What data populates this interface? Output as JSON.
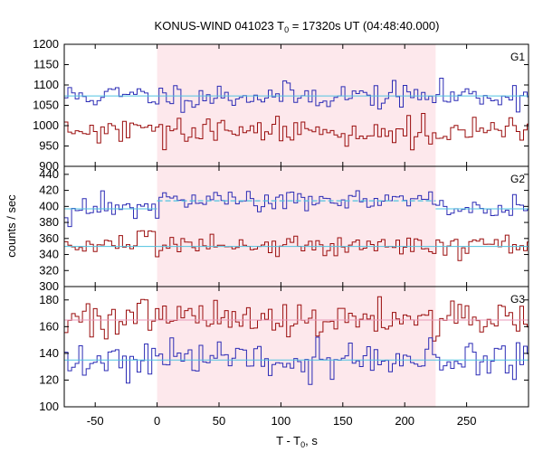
{
  "chart_data": {
    "type": "line",
    "title": "KONUS-WIND 041023 T",
    "title_sub": "0",
    "title_rest": " = 17320s UT (04:48:40.000)",
    "xlabel": "T - T",
    "xlabel_sub": "0",
    "xlabel_rest": ", s",
    "ylabel": "counts / sec",
    "xlim": [
      -75,
      300
    ],
    "xticks": [
      -50,
      0,
      50,
      100,
      150,
      200,
      250
    ],
    "shaded_interval": [
      0,
      225
    ],
    "colors": {
      "shade": "#fde8ec",
      "blue": "#2b2bb5",
      "red": "#9a0d0d",
      "fit": "#4fc3e0",
      "fit_red": "#e89ab8"
    },
    "bin_width": 2.944,
    "panels": [
      {
        "name": "G1",
        "ylim": [
          900,
          1200
        ],
        "yticks": [
          900,
          950,
          1000,
          1050,
          1100,
          1150,
          1200
        ],
        "series": [
          {
            "color": "blue",
            "mean": 1073,
            "noise": 16,
            "seed": 11,
            "after_mean": 1073,
            "fit": 1073
          },
          {
            "color": "red",
            "mean": 985,
            "noise": 17,
            "seed": 29,
            "after_mean": 985,
            "fit": null
          }
        ]
      },
      {
        "name": "G2",
        "ylim": [
          300,
          450
        ],
        "yticks": [
          300,
          320,
          340,
          360,
          380,
          400,
          420,
          440
        ],
        "series": [
          {
            "color": "blue",
            "mean": 397,
            "noise": 7,
            "seed": 47,
            "after_mean": 407,
            "fit": 397,
            "fit_after": 407
          },
          {
            "color": "red",
            "mean": 352,
            "noise": 7,
            "seed": 83,
            "after_mean": 352,
            "fit": 350
          }
        ]
      },
      {
        "name": "G3",
        "ylim": [
          100,
          190
        ],
        "yticks": [
          100,
          120,
          140,
          160,
          180
        ],
        "series": [
          {
            "color": "red",
            "mean": 166,
            "noise": 7,
            "seed": 101,
            "after_mean": 166,
            "fit": 165,
            "fit_color": "fit_red"
          },
          {
            "color": "blue",
            "mean": 135,
            "noise": 7,
            "seed": 131,
            "after_mean": 135,
            "fit": 135
          }
        ]
      }
    ]
  }
}
